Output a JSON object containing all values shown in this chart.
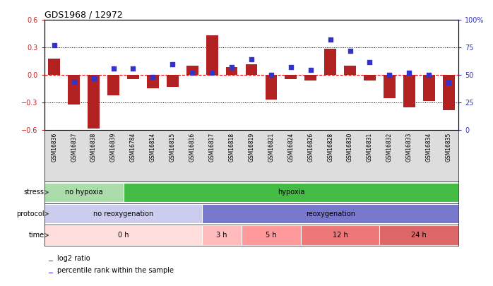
{
  "title": "GDS1968 / 12972",
  "samples": [
    "GSM16836",
    "GSM16837",
    "GSM16838",
    "GSM16839",
    "GSM16784",
    "GSM16814",
    "GSM16815",
    "GSM16816",
    "GSM16817",
    "GSM16818",
    "GSM16819",
    "GSM16821",
    "GSM16824",
    "GSM16826",
    "GSM16828",
    "GSM16830",
    "GSM16831",
    "GSM16832",
    "GSM16833",
    "GSM16834",
    "GSM16835"
  ],
  "log2_ratio": [
    0.18,
    -0.32,
    -0.58,
    -0.22,
    -0.04,
    -0.14,
    -0.13,
    0.1,
    0.43,
    0.09,
    0.12,
    -0.27,
    -0.04,
    -0.06,
    0.29,
    0.1,
    -0.06,
    -0.25,
    -0.35,
    -0.28,
    -0.38
  ],
  "percentile": [
    77,
    44,
    47,
    56,
    56,
    48,
    60,
    52,
    52,
    57,
    64,
    50,
    57,
    55,
    82,
    72,
    62,
    50,
    52,
    50,
    43
  ],
  "bar_color": "#b22222",
  "dot_color": "#3333cc",
  "ylim_left": [
    -0.6,
    0.6
  ],
  "ylim_right": [
    0,
    100
  ],
  "yticks_left": [
    -0.6,
    -0.3,
    0.0,
    0.3,
    0.6
  ],
  "yticks_right": [
    0,
    25,
    50,
    75,
    100
  ],
  "ytick_labels_right": [
    "0",
    "25",
    "50",
    "75",
    "100%"
  ],
  "hline_dotted": [
    0.3,
    -0.3
  ],
  "hline_red": 0.0,
  "stress_groups": [
    {
      "label": "no hypoxia",
      "start": 0,
      "end": 4,
      "color": "#aaddaa"
    },
    {
      "label": "hypoxia",
      "start": 4,
      "end": 21,
      "color": "#44bb44"
    }
  ],
  "protocol_groups": [
    {
      "label": "no reoxygenation",
      "start": 0,
      "end": 8,
      "color": "#ccccee"
    },
    {
      "label": "reoxygenation",
      "start": 8,
      "end": 21,
      "color": "#7777cc"
    }
  ],
  "time_groups": [
    {
      "label": "0 h",
      "start": 0,
      "end": 8,
      "color": "#ffdddd"
    },
    {
      "label": "3 h",
      "start": 8,
      "end": 10,
      "color": "#ffbbbb"
    },
    {
      "label": "5 h",
      "start": 10,
      "end": 13,
      "color": "#ff9999"
    },
    {
      "label": "12 h",
      "start": 13,
      "end": 17,
      "color": "#ee7777"
    },
    {
      "label": "24 h",
      "start": 17,
      "end": 21,
      "color": "#dd6666"
    }
  ],
  "legend_items": [
    {
      "label": "log2 ratio",
      "color": "#b22222"
    },
    {
      "label": "percentile rank within the sample",
      "color": "#3333cc"
    }
  ],
  "row_labels": [
    "stress",
    "protocol",
    "time"
  ],
  "tick_label_color_left": "#cc2222",
  "tick_label_color_right": "#3333cc",
  "bar_width": 0.6,
  "sample_box_color": "#dddddd"
}
